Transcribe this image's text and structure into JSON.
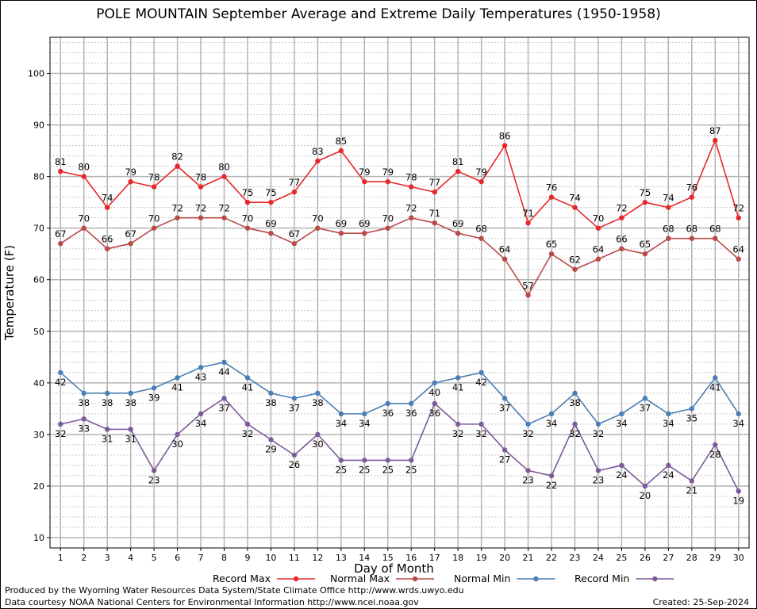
{
  "chart_data": {
    "type": "line",
    "title": "POLE MOUNTAIN September Average and Extreme Daily Temperatures (1950-1958)",
    "xlabel": "Day of Month",
    "ylabel": "Temperature (F)",
    "x": [
      1,
      2,
      3,
      4,
      5,
      6,
      7,
      8,
      9,
      10,
      11,
      12,
      13,
      14,
      15,
      16,
      17,
      18,
      19,
      20,
      21,
      22,
      23,
      24,
      25,
      26,
      27,
      28,
      29,
      30
    ],
    "xlim": [
      0.55,
      30.45
    ],
    "ylim": [
      8,
      107
    ],
    "yticks": [
      10,
      20,
      30,
      40,
      50,
      60,
      70,
      80,
      90,
      100
    ],
    "grid": true,
    "legend_position": "bottom",
    "series": [
      {
        "name": "Record Max",
        "color": "#e8272a",
        "values": [
          81,
          80,
          74,
          79,
          78,
          82,
          78,
          80,
          75,
          75,
          77,
          83,
          85,
          79,
          79,
          78,
          77,
          81,
          79,
          86,
          71,
          76,
          74,
          70,
          72,
          75,
          74,
          76,
          87,
          72
        ]
      },
      {
        "name": "Normal Max",
        "color": "#b94a48",
        "values": [
          67,
          70,
          66,
          67,
          70,
          72,
          72,
          72,
          70,
          69,
          67,
          70,
          69,
          69,
          70,
          72,
          71,
          69,
          68,
          64,
          57,
          65,
          62,
          64,
          66,
          65,
          68,
          68,
          68,
          64
        ]
      },
      {
        "name": "Normal Min",
        "color": "#4a7fb5",
        "values": [
          42,
          38,
          38,
          38,
          39,
          41,
          43,
          44,
          41,
          38,
          37,
          38,
          34,
          34,
          36,
          36,
          40,
          41,
          42,
          37,
          32,
          34,
          38,
          32,
          34,
          37,
          34,
          35,
          41,
          34
        ]
      },
      {
        "name": "Record Min",
        "color": "#7d5a99",
        "values": [
          32,
          33,
          31,
          31,
          23,
          30,
          34,
          37,
          32,
          29,
          26,
          30,
          25,
          25,
          25,
          25,
          36,
          32,
          32,
          27,
          23,
          22,
          32,
          23,
          24,
          20,
          24,
          21,
          28,
          19
        ]
      }
    ]
  },
  "footer": {
    "produced_by": "Produced by the Wyoming Water Resources Data System/State Climate Office http://www.wrds.uwyo.edu",
    "courtesy": "Data courtesy NOAA National Centers for Environmental Information http://www.ncei.noaa.gov",
    "created": "Created: 25-Sep-2024"
  }
}
